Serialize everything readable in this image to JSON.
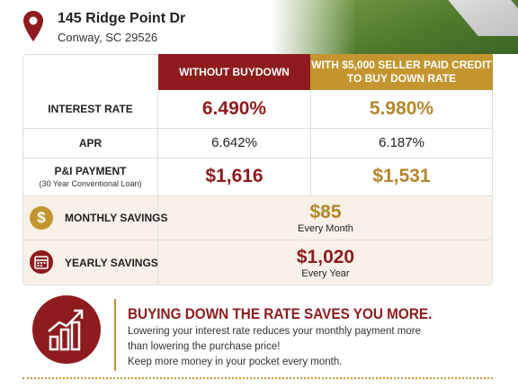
{
  "address": {
    "street": "145 Ridge Point Dr",
    "city": "Conway, SC 29526"
  },
  "table": {
    "headers": [
      [
        "WITHOUT BUYDOWN"
      ],
      [
        "WITH $5,000 SELLER PAID CREDIT",
        "TO BUY DOWN RATE"
      ]
    ],
    "rows": [
      {
        "label": "INTEREST RATE",
        "values": [
          "6.490%",
          "5.980%"
        ]
      },
      {
        "label": "APR",
        "values": [
          "6.642%",
          "6.187%"
        ]
      },
      {
        "label": "P&I PAYMENT",
        "sublabel": "(30 Year Conventional Loan)",
        "values": [
          "$1,616",
          "$1,531"
        ]
      }
    ]
  },
  "savings": [
    {
      "icon": "$",
      "label": "MONTHLY SAVINGS",
      "value": "$85",
      "note": "Every Month"
    },
    {
      "label": "YEARLY SAVINGS",
      "value": "$1,020",
      "note": "Every Year"
    }
  ],
  "callout": {
    "title": "BUYING DOWN THE RATE SAVES YOU MORE.",
    "lines": [
      "Lowering your interest rate reduces your monthly payment more",
      "than lowering the purchase price!",
      "Keep more money in your pocket every month."
    ]
  }
}
